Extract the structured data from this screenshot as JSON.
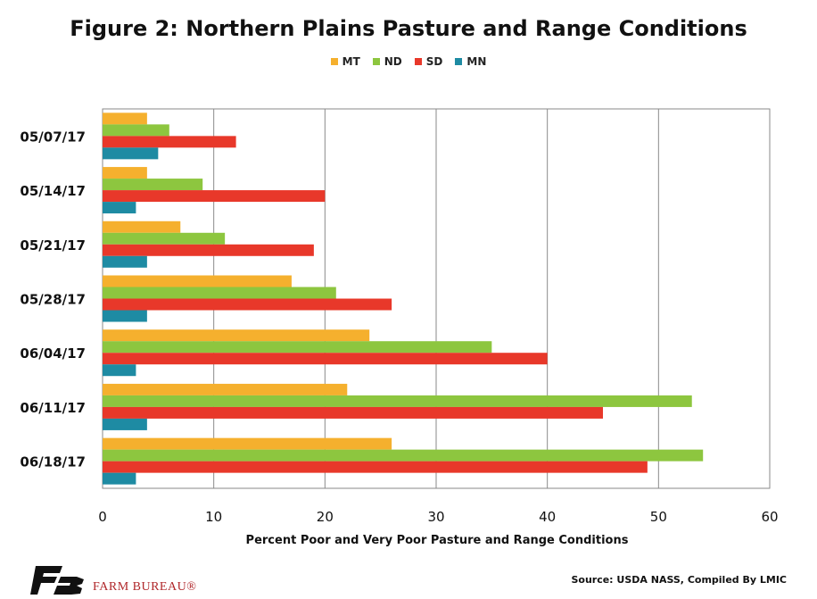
{
  "chart_data": {
    "type": "bar",
    "orientation": "horizontal",
    "title": "Figure 2: Northern Plains Pasture and Range Conditions",
    "xlabel": "Percent  Poor and Very Poor Pasture and Range Conditions",
    "ylabel": "",
    "xlim": [
      0,
      60
    ],
    "xticks": [
      0,
      10,
      20,
      30,
      40,
      50,
      60
    ],
    "grid": true,
    "legend_position": "top",
    "categories": [
      "05/07/17",
      "05/14/17",
      "05/21/17",
      "05/28/17",
      "06/04/17",
      "06/11/17",
      "06/18/17"
    ],
    "series": [
      {
        "name": "MT",
        "color": "#F5B02E",
        "values": [
          4,
          4,
          7,
          17,
          24,
          22,
          26
        ]
      },
      {
        "name": "ND",
        "color": "#8DC63F",
        "values": [
          6,
          9,
          11,
          21,
          35,
          53,
          54
        ]
      },
      {
        "name": "SD",
        "color": "#E8382A",
        "values": [
          12,
          20,
          19,
          26,
          40,
          45,
          49
        ]
      },
      {
        "name": "MN",
        "color": "#1E8BA3",
        "values": [
          5,
          3,
          4,
          4,
          3,
          4,
          3
        ]
      }
    ]
  },
  "source": "Source: USDA NASS, Compiled By LMIC",
  "logo": {
    "text": "FARM BUREAU®",
    "color": "#B0282B"
  }
}
